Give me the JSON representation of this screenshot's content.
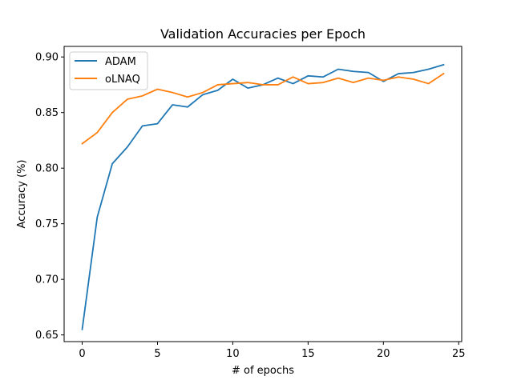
{
  "chart_data": {
    "type": "line",
    "title": "Validation Accuracies per Epoch",
    "xlabel": "# of epochs",
    "ylabel": "Accuracy (%)",
    "xlim": [
      -1.2,
      25.2
    ],
    "ylim": [
      0.644,
      0.9095
    ],
    "xticks": [
      0,
      5,
      10,
      15,
      20,
      25
    ],
    "yticks": [
      0.65,
      0.7,
      0.75,
      0.8,
      0.85,
      0.9
    ],
    "xtick_labels": [
      "0",
      "5",
      "10",
      "15",
      "20",
      "25"
    ],
    "ytick_labels": [
      "0.65",
      "0.70",
      "0.75",
      "0.80",
      "0.85",
      "0.90"
    ],
    "legend_position": "top-left",
    "grid": false,
    "x": [
      0,
      1,
      2,
      3,
      4,
      5,
      6,
      7,
      8,
      9,
      10,
      11,
      12,
      13,
      14,
      15,
      16,
      17,
      18,
      19,
      20,
      21,
      22,
      23,
      24
    ],
    "series": [
      {
        "name": "ADAM",
        "color": "#1f77b4",
        "values": [
          0.655,
          0.756,
          0.804,
          0.819,
          0.838,
          0.84,
          0.857,
          0.855,
          0.866,
          0.87,
          0.88,
          0.872,
          0.875,
          0.881,
          0.876,
          0.883,
          0.882,
          0.889,
          0.887,
          0.886,
          0.878,
          0.885,
          0.886,
          0.889,
          0.893
        ]
      },
      {
        "name": "oLNAQ",
        "color": "#ff7f0e",
        "values": [
          0.822,
          0.832,
          0.85,
          0.862,
          0.865,
          0.871,
          0.868,
          0.864,
          0.868,
          0.875,
          0.876,
          0.877,
          0.875,
          0.875,
          0.882,
          0.876,
          0.877,
          0.881,
          0.877,
          0.881,
          0.879,
          0.882,
          0.88,
          0.876,
          0.885
        ]
      }
    ]
  }
}
